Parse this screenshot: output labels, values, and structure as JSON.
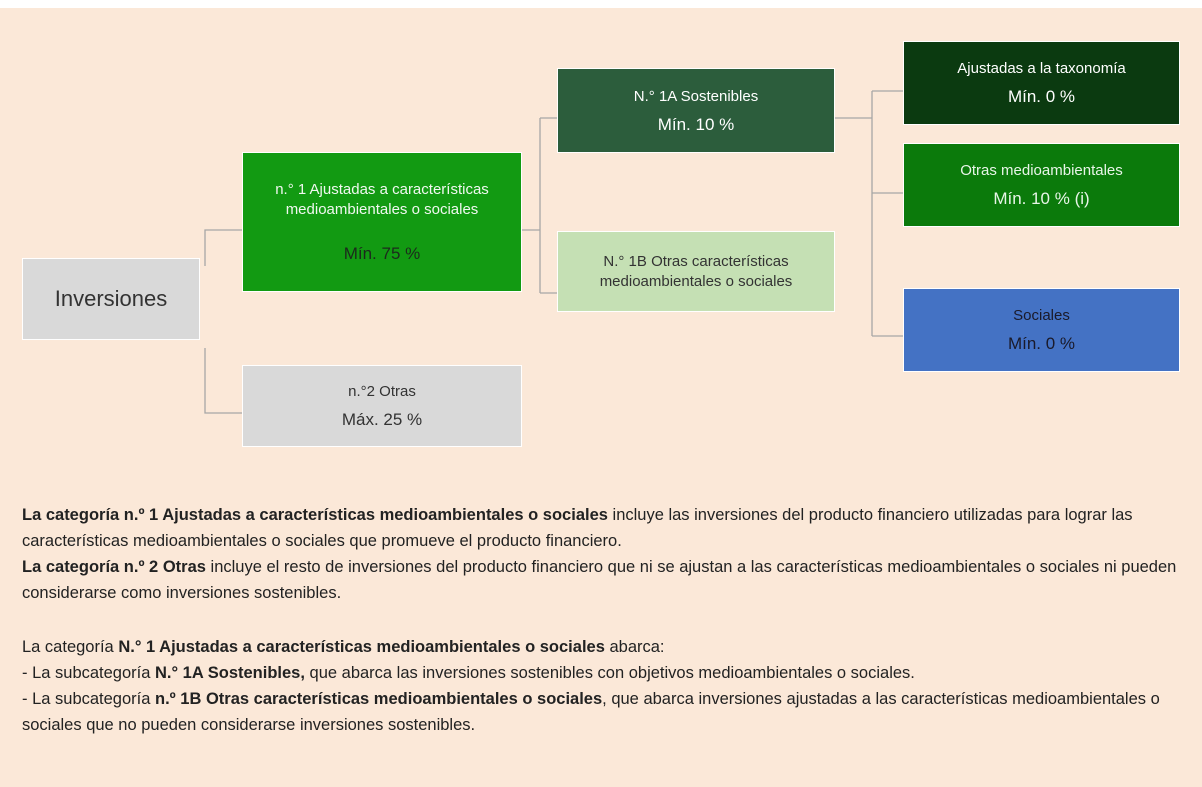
{
  "nodes": [
    {
      "label": "Inversiones"
    },
    {
      "label": "n.° 1 Ajustadas a características medioambientales o sociales",
      "value": "Mín. 75 %"
    },
    {
      "label": "n.°2 Otras",
      "value": "Máx. 25 %"
    },
    {
      "label": "N.° 1A Sostenibles",
      "value": "Mín. 10 %"
    },
    {
      "label": "N.° 1B Otras características medioambientales o sociales"
    },
    {
      "label": "Ajustadas a la taxonomía",
      "value": "Mín. 0 %"
    },
    {
      "label": "Otras medioambientales",
      "value": "Mín. 10 % (i)"
    },
    {
      "label": "Sociales",
      "value": "Mín. 0 %"
    }
  ],
  "text": {
    "paragraphs": [
      [
        "La categoría n.º 1 Ajustadas a características medioambientales o sociales",
        " incluye las inversiones del producto financiero utilizadas para lograr las características medioambientales o sociales que promueve el producto financiero."
      ],
      [
        "La categoría n.º 2 Otras",
        " incluye el resto de inversiones del producto financiero que ni se ajustan a las características medioambientales o sociales ni pueden considerarse como inversiones sostenibles."
      ],
      [
        "La categoría ",
        "N.° 1 Ajustadas a características medioambientales o sociales",
        " abarca:"
      ],
      [
        "- La subcategoría ",
        "N.° 1A Sostenibles,",
        " que abarca las inversiones sostenibles con objetivos medioambientales o sociales."
      ],
      [
        "- La subcategoría ",
        "n.º 1B Otras características medioambientales o sociales",
        ", que abarca inversiones ajustadas a las características medioambientales o sociales que no pueden considerarse inversiones sostenibles."
      ]
    ]
  }
}
